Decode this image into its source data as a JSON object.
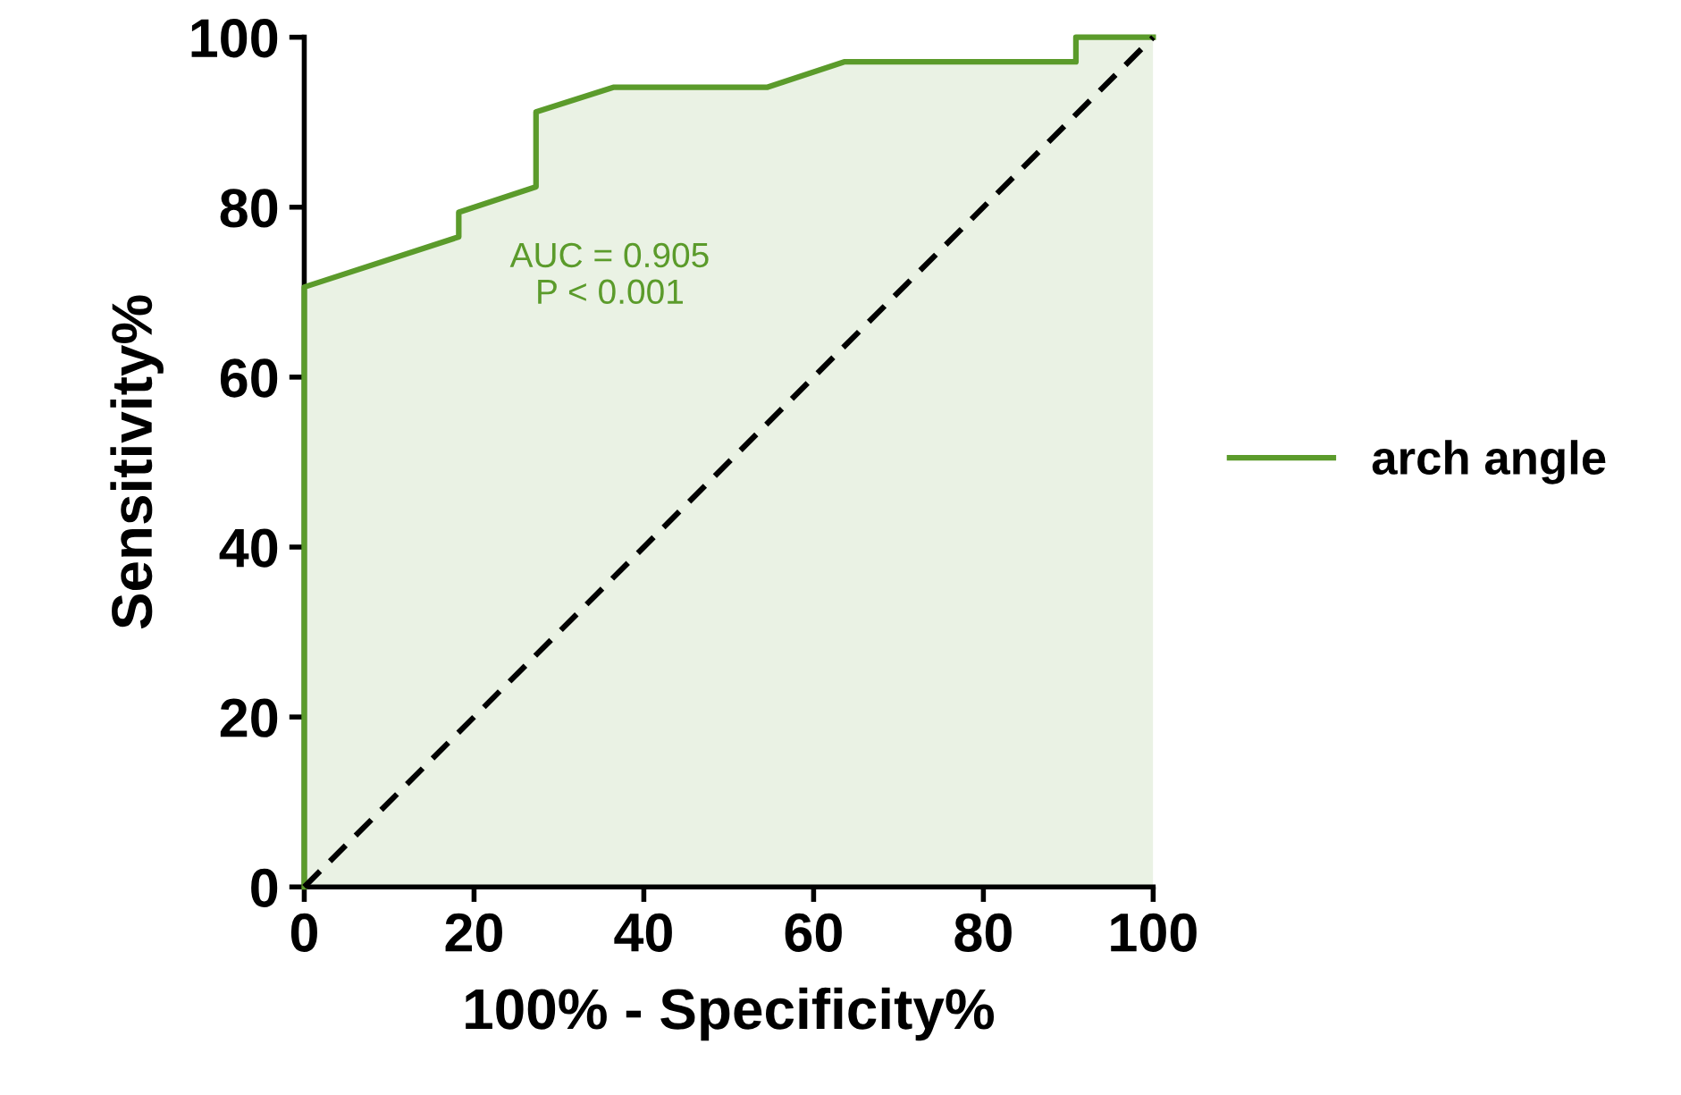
{
  "chart_data": {
    "type": "line",
    "xlabel": "100% - Specificity%",
    "ylabel": "Sensitivity%",
    "xlim": [
      0,
      100
    ],
    "ylim": [
      0,
      100
    ],
    "xticks": [
      0,
      20,
      40,
      60,
      80,
      100
    ],
    "yticks": [
      0,
      20,
      40,
      60,
      80,
      100
    ],
    "grid": false,
    "legend": "right",
    "annotations": [
      "AUC = 0.905",
      "P < 0.001"
    ],
    "series": [
      {
        "name": "arch angle",
        "color": "#5b9b2b",
        "line_style": "solid",
        "x": [
          0,
          0,
          18.2,
          18.2,
          27.3,
          27.3,
          36.4,
          54.5,
          63.6,
          90.9,
          90.9,
          100
        ],
        "values": [
          0,
          70.6,
          76.5,
          79.4,
          82.4,
          91.2,
          94.1,
          94.1,
          97.1,
          97.1,
          100,
          100
        ]
      },
      {
        "type": "line",
        "color": "#000000",
        "line_style": "dashed",
        "x": [
          0,
          100
        ],
        "values": [
          0,
          100
        ]
      }
    ]
  }
}
